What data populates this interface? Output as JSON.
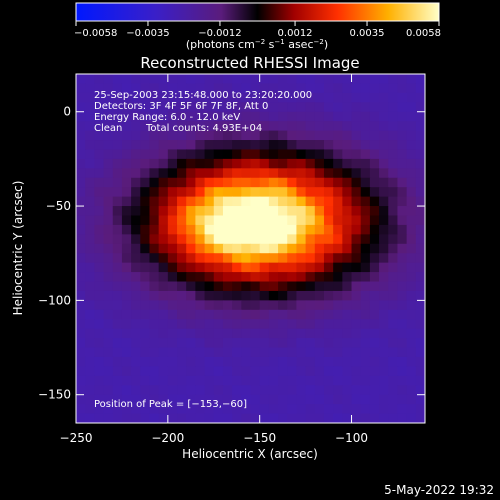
{
  "chart_data": {
    "type": "heatmap",
    "title": "Reconstructed RHESSI Image",
    "xlabel": "Heliocentric X (arcsec)",
    "ylabel": "Heliocentric Y (arcsec)",
    "xlim": [
      -250,
      -60
    ],
    "ylim": [
      -165,
      20
    ],
    "xticks": [
      {
        "value": -250,
        "label": "−250"
      },
      {
        "value": -200,
        "label": "−200"
      },
      {
        "value": -150,
        "label": "−150"
      },
      {
        "value": -100,
        "label": "−100"
      }
    ],
    "yticks": [
      {
        "value": 0,
        "label": "0"
      },
      {
        "value": -50,
        "label": "−50"
      },
      {
        "value": -100,
        "label": "−100"
      },
      {
        "value": -150,
        "label": "−150"
      }
    ],
    "colorbar": {
      "range": [
        -0.0058,
        0.0058
      ],
      "ticks": [
        {
          "value": -0.0058,
          "label": "−0.0058"
        },
        {
          "value": -0.0035,
          "label": "−0.0035"
        },
        {
          "value": -0.0012,
          "label": "−0.0012"
        },
        {
          "value": 0.0012,
          "label": "0.0012"
        },
        {
          "value": 0.0035,
          "label": "0.0035"
        },
        {
          "value": 0.0058,
          "label": "0.0058"
        }
      ],
      "units_main": "(photons cm",
      "units_exp1": "−2",
      "units_mid": " s",
      "units_exp2": "−1",
      "units_end": " asec",
      "units_exp3": "−2",
      "units_close": ")"
    },
    "annotations": {
      "time_range": "25-Sep-2003 23:15:48.000 to 23:20:20.000",
      "detectors": "Detectors: 3F 4F 5F 6F 7F 8F, Att 0",
      "energy": "Energy Range: 6.0 - 12.0 keV",
      "algorithm": "Clean",
      "total_counts": "Total counts: 4.93E+04",
      "peak": "Position of Peak = [−153,−60]"
    },
    "peak": {
      "x": -153,
      "y": -60
    },
    "source_center": {
      "x": -150,
      "y": -58
    },
    "background_level": -0.0025
  },
  "footer": {
    "timestamp": "5-May-2022 19:32"
  }
}
